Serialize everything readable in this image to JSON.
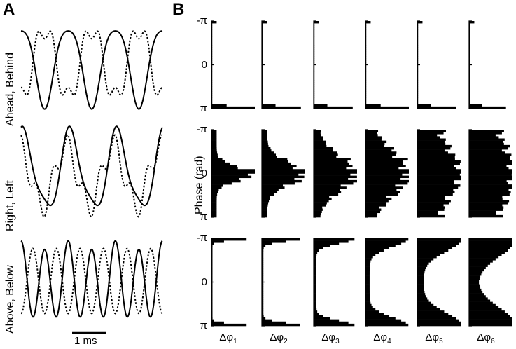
{
  "panels": {
    "a": "A",
    "b": "B"
  },
  "panel_a": {
    "rows": [
      {
        "label": "Ahead, Behind"
      },
      {
        "label": "Right, Left"
      },
      {
        "label": "Above, Below"
      }
    ],
    "scale_bar_label": "1 ms"
  },
  "panel_b": {
    "ylabel": "Phase (rad)",
    "yticks": [
      "-π",
      "0",
      "π"
    ],
    "columns": [
      {
        "label": "Δφ",
        "sub": "1"
      },
      {
        "label": "Δφ",
        "sub": "2"
      },
      {
        "label": "Δφ",
        "sub": "3"
      },
      {
        "label": "Δφ",
        "sub": "4"
      },
      {
        "label": "Δφ",
        "sub": "5"
      },
      {
        "label": "Δφ",
        "sub": "6"
      }
    ]
  },
  "chart_data": {
    "type": "bar",
    "description_rows": [
      "Ahead, Behind",
      "Right, Left",
      "Above, Below"
    ],
    "orientation": "horizontal histograms",
    "ylim": [
      "-π",
      "π"
    ],
    "bin_count": 40,
    "histogram_shapes": [
      [
        {
          "kind": "spike_pi",
          "peak": 1.0
        },
        {
          "kind": "spike_pi",
          "peak": 0.9
        },
        {
          "kind": "spike_pi",
          "peak": 0.9
        },
        {
          "kind": "spike_pi",
          "peak": 1.0
        },
        {
          "kind": "spike_pi",
          "peak": 0.9
        },
        {
          "kind": "spike_pi",
          "peak": 0.85
        }
      ],
      [
        {
          "kind": "peak_zero",
          "width": 0.25
        },
        {
          "kind": "peak_zero",
          "width": 0.4
        },
        {
          "kind": "peak_zero",
          "width": 0.6
        },
        {
          "kind": "peak_zero",
          "width": 0.8
        },
        {
          "kind": "broad",
          "width": 1.4
        },
        {
          "kind": "broad",
          "width": 2.2
        }
      ],
      [
        {
          "kind": "edges",
          "width": 0.2
        },
        {
          "kind": "edges",
          "width": 0.3
        },
        {
          "kind": "edges",
          "width": 0.5
        },
        {
          "kind": "edges",
          "width": 0.8
        },
        {
          "kind": "edges",
          "width": 1.2
        },
        {
          "kind": "edges",
          "width": 1.6
        }
      ]
    ]
  }
}
